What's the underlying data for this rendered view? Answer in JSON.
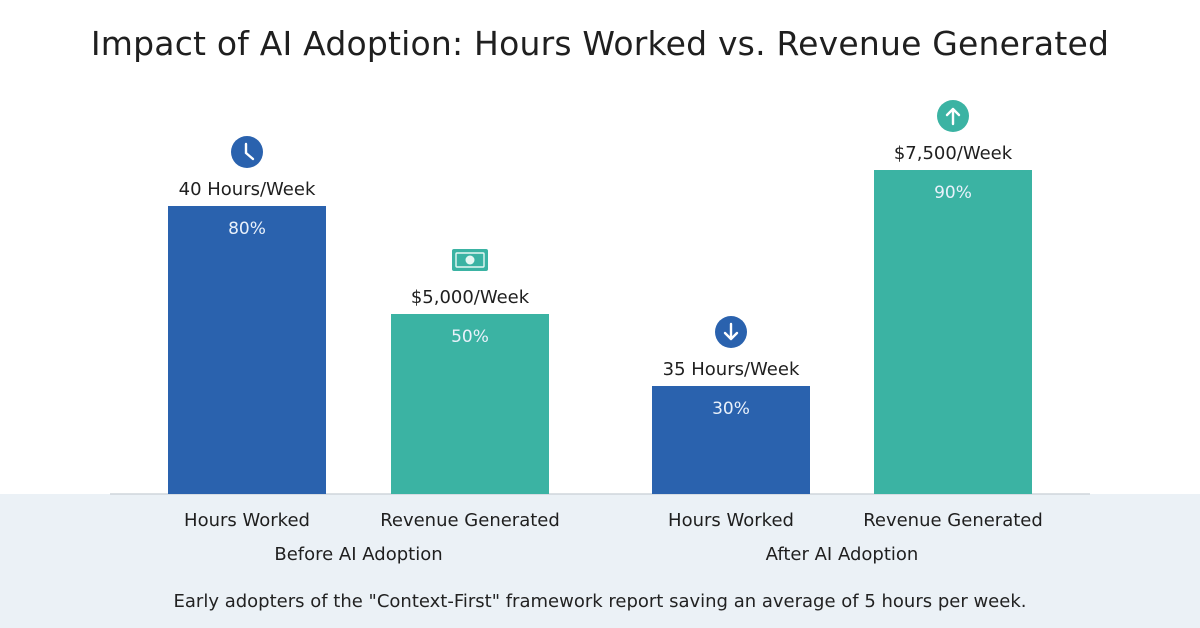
{
  "title": "Impact of AI Adoption: Hours Worked vs. Revenue Generated",
  "caption": "Early adopters of the \"Context-First\" framework report saving an average of 5 hours per week.",
  "colors": {
    "hours": "#2a62ae",
    "revenue": "#3bb3a3",
    "axis": "#cfd6dc",
    "footer_band": "#ebf1f6",
    "text": "#1f1f1f",
    "inner_label": "#e9f1fb"
  },
  "chart_data": {
    "type": "bar",
    "title": "Impact of AI Adoption: Hours Worked vs. Revenue Generated",
    "xlabel": "",
    "ylabel": "",
    "ylim": [
      0,
      100
    ],
    "grid": false,
    "groups": [
      "Before AI Adoption",
      "After AI Adoption"
    ],
    "series": [
      {
        "name": "Hours Worked",
        "color_key": "hours"
      },
      {
        "name": "Revenue Generated",
        "color_key": "revenue"
      }
    ],
    "bars": [
      {
        "group": "Before AI Adoption",
        "series": "Hours Worked",
        "category_label": "Hours Worked",
        "value": 80,
        "value_label": "80%",
        "top_label": "40 Hours/Week",
        "icon": "clock-icon"
      },
      {
        "group": "Before AI Adoption",
        "series": "Revenue Generated",
        "category_label": "Revenue Generated",
        "value": 50,
        "value_label": "50%",
        "top_label": "$5,000/Week",
        "icon": "money-icon"
      },
      {
        "group": "After AI Adoption",
        "series": "Hours Worked",
        "category_label": "Hours Worked",
        "value": 30,
        "value_label": "30%",
        "top_label": "35 Hours/Week",
        "icon": "arrow-down-icon"
      },
      {
        "group": "After AI Adoption",
        "series": "Revenue Generated",
        "category_label": "Revenue Generated",
        "value": 90,
        "value_label": "90%",
        "top_label": "$7,500/Week",
        "icon": "arrow-up-icon"
      }
    ]
  }
}
